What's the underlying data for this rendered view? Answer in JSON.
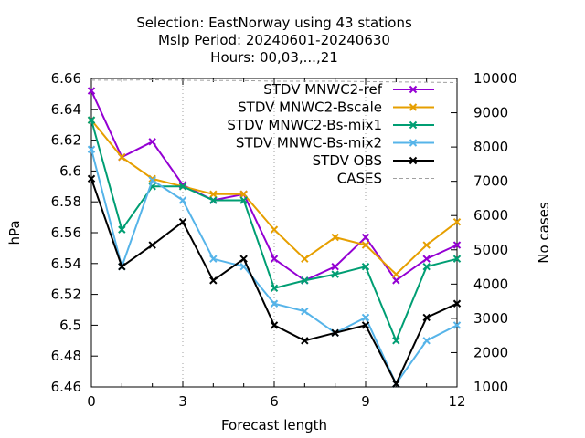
{
  "chart_data": {
    "type": "line",
    "title_lines": [
      "Selection: EastNorway using    43 stations",
      "Mslp   Period: 20240601-20240630",
      "Hours: 00,03,...,21"
    ],
    "xlabel": "Forecast length",
    "ylabel": "hPa",
    "y2label": "No cases",
    "x": [
      0,
      1,
      2,
      3,
      4,
      5,
      6,
      7,
      8,
      9,
      10,
      11,
      12
    ],
    "xlim": [
      0,
      12
    ],
    "ylim": [
      6.46,
      6.66
    ],
    "y2lim": [
      1000,
      10000
    ],
    "xticks": [
      "0",
      "3",
      "6",
      "9",
      "12"
    ],
    "yticks": [
      "6.46",
      "6.48",
      "6.5",
      "6.52",
      "6.54",
      "6.56",
      "6.58",
      "6.6",
      "6.62",
      "6.64",
      "6.66"
    ],
    "y2ticks": [
      "1000",
      "2000",
      "3000",
      "4000",
      "5000",
      "6000",
      "7000",
      "8000",
      "9000",
      "10000"
    ],
    "legend_position": "top-right",
    "grid": "dotted at x ticks",
    "series": [
      {
        "name": "STDV MNWC2-ref",
        "color": "#9400d3",
        "marker": "x",
        "axis": "y1",
        "values": [
          6.652,
          6.609,
          6.619,
          6.591,
          6.581,
          6.585,
          6.543,
          6.529,
          6.538,
          6.557,
          6.529,
          6.543,
          6.552
        ]
      },
      {
        "name": "STDV MNWC2-Bscale",
        "color": "#e69f00",
        "marker": "x",
        "axis": "y1",
        "values": [
          6.633,
          6.609,
          6.595,
          6.59,
          6.585,
          6.585,
          6.562,
          6.543,
          6.557,
          6.552,
          6.533,
          6.552,
          6.567
        ]
      },
      {
        "name": "STDV MNWC2-Bs-mix1",
        "color": "#009e73",
        "marker": "x",
        "axis": "y1",
        "values": [
          6.633,
          6.562,
          6.59,
          6.59,
          6.581,
          6.581,
          6.524,
          6.529,
          6.533,
          6.538,
          6.49,
          6.538,
          6.543
        ]
      },
      {
        "name": "STDV MNWC-Bs-mix2",
        "color": "#56b4e9",
        "marker": "x",
        "axis": "y1",
        "values": [
          6.614,
          6.538,
          6.594,
          6.581,
          6.543,
          6.538,
          6.514,
          6.509,
          6.495,
          6.505,
          6.462,
          6.49,
          6.5
        ]
      },
      {
        "name": "STDV OBS",
        "color": "#000000",
        "marker": "x",
        "axis": "y1",
        "values": [
          6.595,
          6.538,
          6.552,
          6.567,
          6.529,
          6.543,
          6.5,
          6.49,
          6.495,
          6.5,
          6.462,
          6.505,
          6.514
        ]
      },
      {
        "name": "CASES",
        "color": "#a0a0a0",
        "marker": "none",
        "dashed": true,
        "axis": "y2",
        "values": [
          9950,
          9950,
          9960,
          9950,
          9940,
          9940,
          9920,
          9920,
          9920,
          9910,
          9900,
          9890,
          9880
        ]
      }
    ]
  }
}
